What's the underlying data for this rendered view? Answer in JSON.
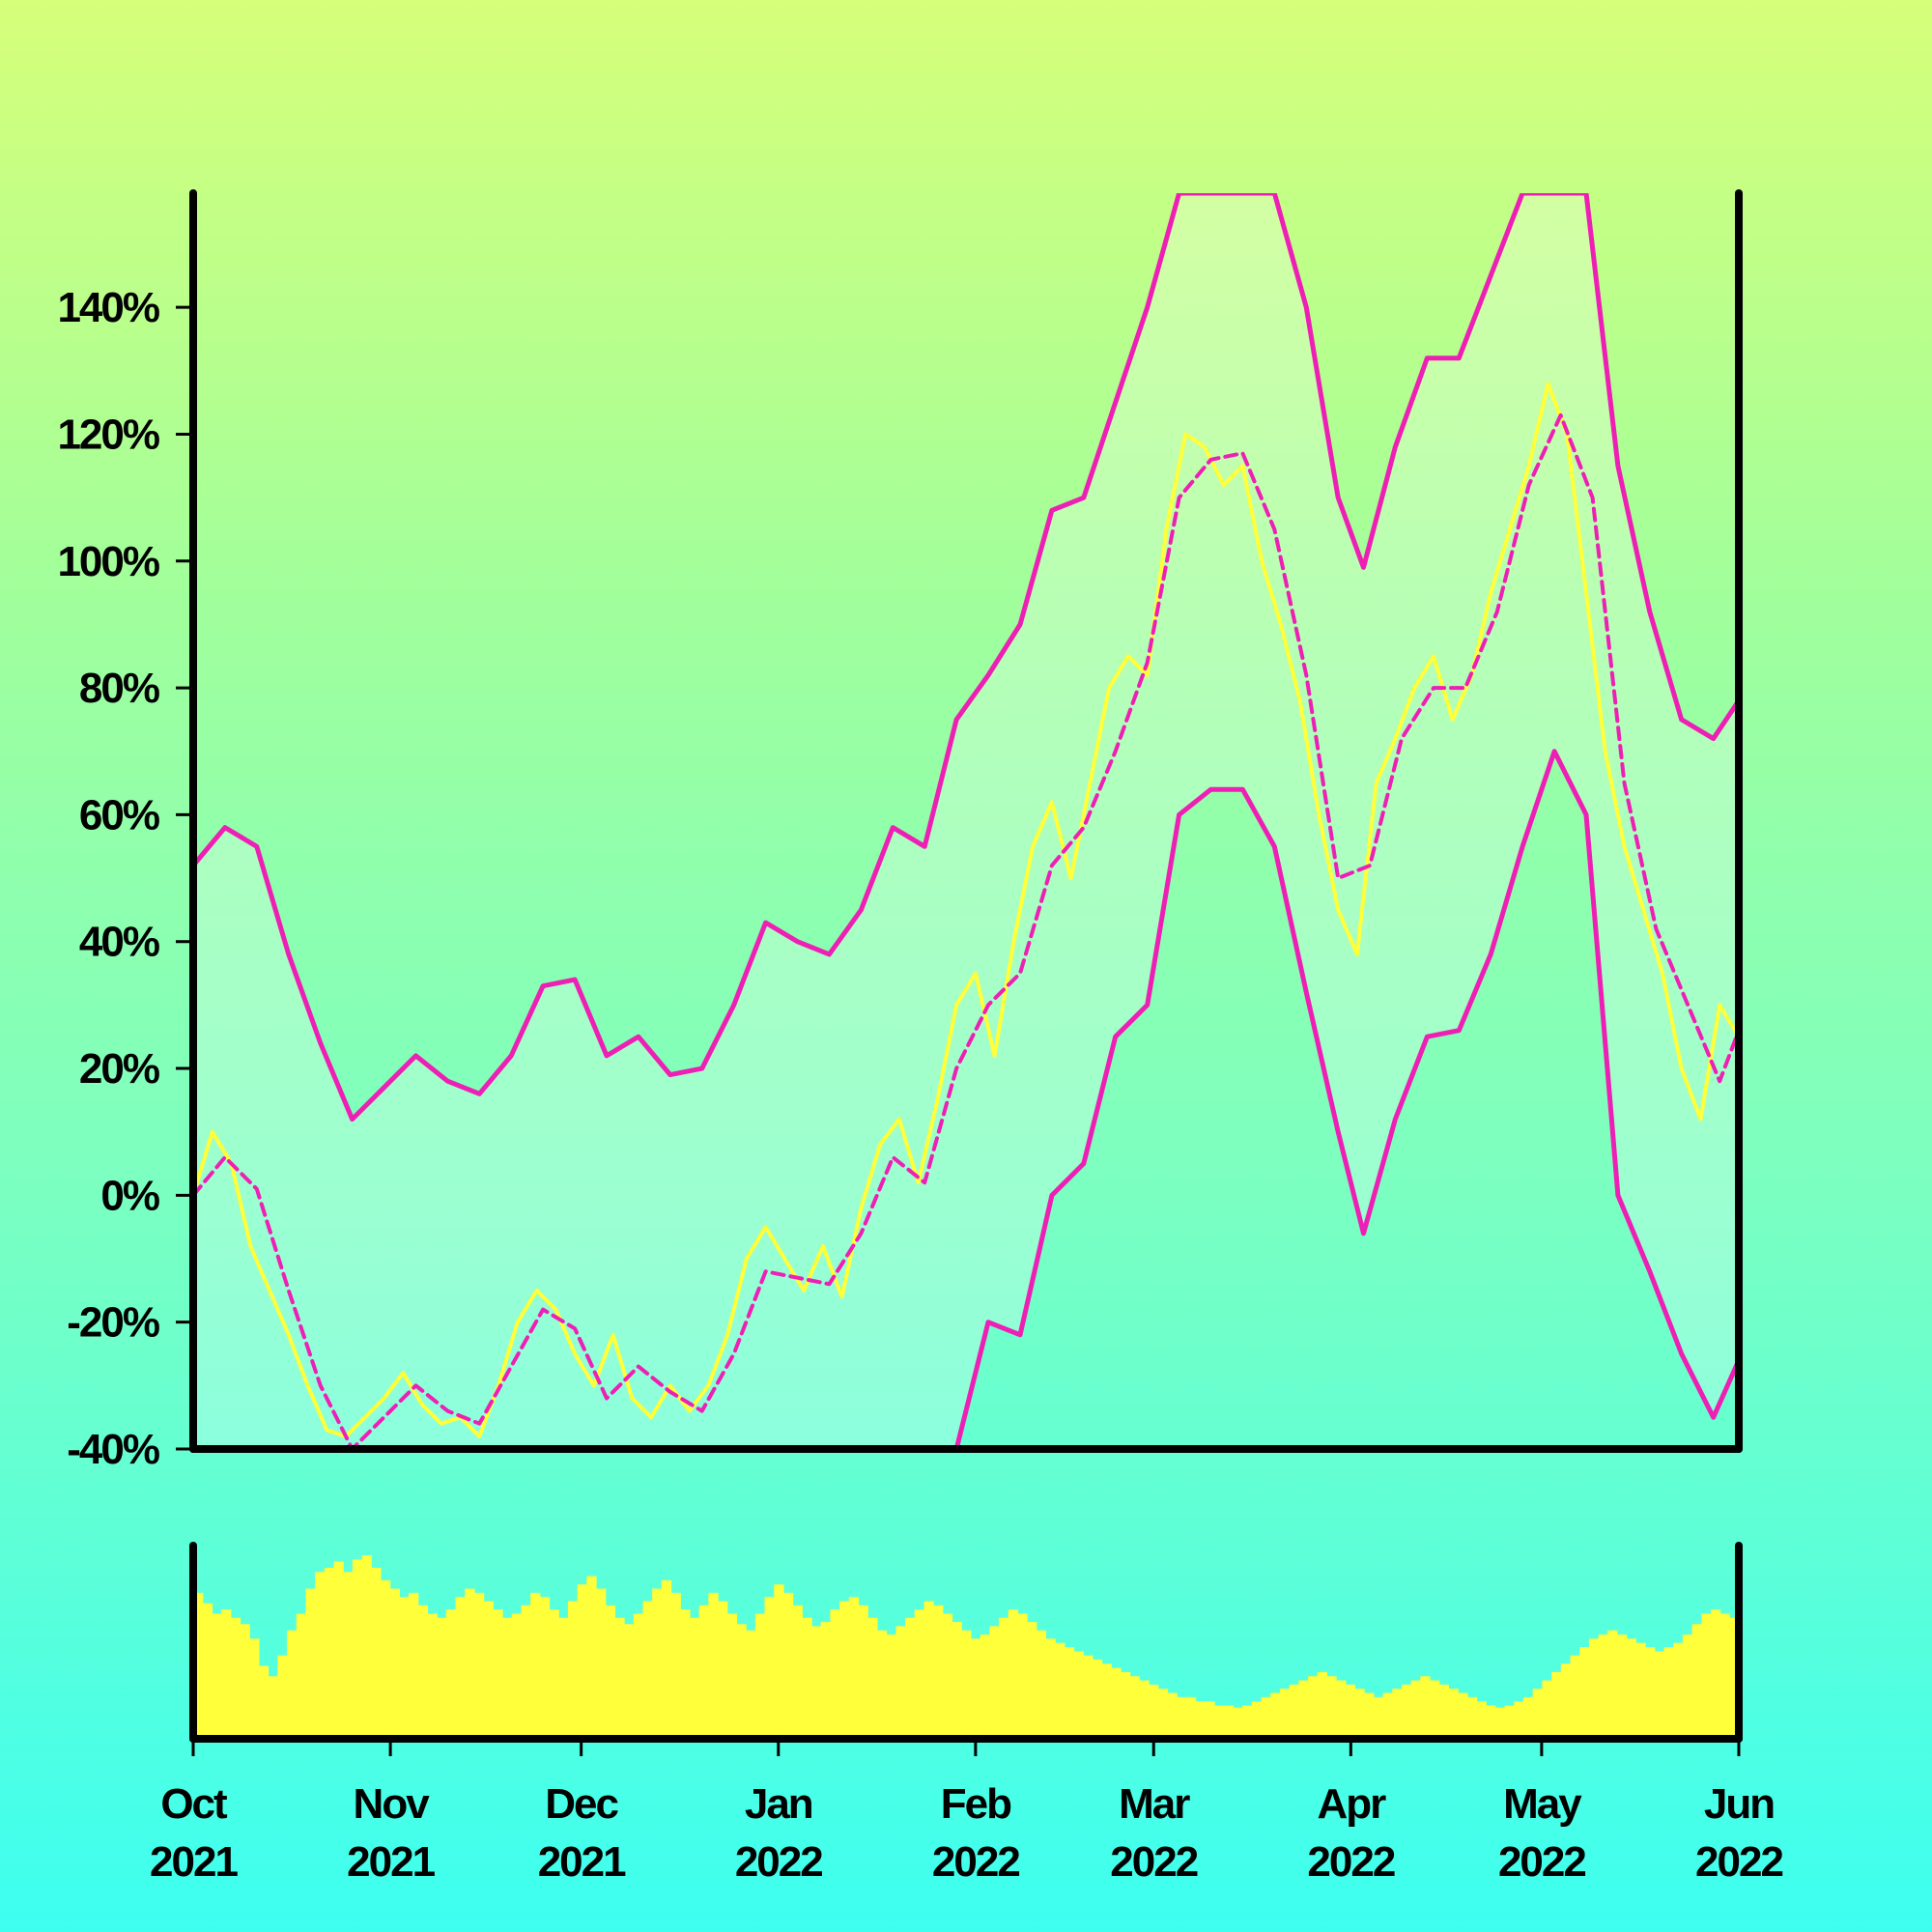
{
  "chart_data": {
    "type": "line",
    "x_domain": [
      "2021-10-01",
      "2022-06-01"
    ],
    "ylim": [
      -40,
      158
    ],
    "y_ticks": [
      {
        "value": -40,
        "label": "-40%"
      },
      {
        "value": -20,
        "label": "-20%"
      },
      {
        "value": 0,
        "label": "0%"
      },
      {
        "value": 20,
        "label": "20%"
      },
      {
        "value": 40,
        "label": "40%"
      },
      {
        "value": 60,
        "label": "60%"
      },
      {
        "value": 80,
        "label": "80%"
      },
      {
        "value": 100,
        "label": "100%"
      },
      {
        "value": 120,
        "label": "120%"
      },
      {
        "value": 140,
        "label": "140%"
      }
    ],
    "x_ticks": [
      {
        "date": "2021-10-01",
        "month": "Oct",
        "year": "2021"
      },
      {
        "date": "2021-11-01",
        "month": "Nov",
        "year": "2021"
      },
      {
        "date": "2021-12-01",
        "month": "Dec",
        "year": "2021"
      },
      {
        "date": "2022-01-01",
        "month": "Jan",
        "year": "2022"
      },
      {
        "date": "2022-02-01",
        "month": "Feb",
        "year": "2022"
      },
      {
        "date": "2022-03-01",
        "month": "Mar",
        "year": "2022"
      },
      {
        "date": "2022-04-01",
        "month": "Apr",
        "year": "2022"
      },
      {
        "date": "2022-05-01",
        "month": "May",
        "year": "2022"
      },
      {
        "date": "2022-06-01",
        "month": "Jun",
        "year": "2022"
      }
    ],
    "series": [
      {
        "role": "price",
        "points": [
          [
            "2021-10-01",
            0
          ],
          [
            "2021-10-04",
            10
          ],
          [
            "2021-10-07",
            5
          ],
          [
            "2021-10-10",
            -8
          ],
          [
            "2021-10-13",
            -15
          ],
          [
            "2021-10-16",
            -22
          ],
          [
            "2021-10-19",
            -30
          ],
          [
            "2021-10-22",
            -37
          ],
          [
            "2021-10-25",
            -38
          ],
          [
            "2021-10-28",
            -35
          ],
          [
            "2021-10-31",
            -32
          ],
          [
            "2021-11-03",
            -28
          ],
          [
            "2021-11-06",
            -33
          ],
          [
            "2021-11-09",
            -36
          ],
          [
            "2021-11-12",
            -35
          ],
          [
            "2021-11-15",
            -38
          ],
          [
            "2021-11-18",
            -30
          ],
          [
            "2021-11-21",
            -20
          ],
          [
            "2021-11-24",
            -15
          ],
          [
            "2021-11-27",
            -18
          ],
          [
            "2021-11-30",
            -25
          ],
          [
            "2021-12-03",
            -30
          ],
          [
            "2021-12-06",
            -22
          ],
          [
            "2021-12-09",
            -32
          ],
          [
            "2021-12-12",
            -35
          ],
          [
            "2021-12-15",
            -30
          ],
          [
            "2021-12-18",
            -34
          ],
          [
            "2021-12-21",
            -30
          ],
          [
            "2021-12-24",
            -22
          ],
          [
            "2021-12-27",
            -10
          ],
          [
            "2021-12-30",
            -5
          ],
          [
            "2022-01-02",
            -10
          ],
          [
            "2022-01-05",
            -15
          ],
          [
            "2022-01-08",
            -8
          ],
          [
            "2022-01-11",
            -16
          ],
          [
            "2022-01-14",
            -2
          ],
          [
            "2022-01-17",
            8
          ],
          [
            "2022-01-20",
            12
          ],
          [
            "2022-01-23",
            2
          ],
          [
            "2022-01-26",
            15
          ],
          [
            "2022-01-29",
            30
          ],
          [
            "2022-02-01",
            35
          ],
          [
            "2022-02-04",
            22
          ],
          [
            "2022-02-07",
            40
          ],
          [
            "2022-02-10",
            55
          ],
          [
            "2022-02-13",
            62
          ],
          [
            "2022-02-16",
            50
          ],
          [
            "2022-02-19",
            65
          ],
          [
            "2022-02-22",
            80
          ],
          [
            "2022-02-25",
            85
          ],
          [
            "2022-02-28",
            82
          ],
          [
            "2022-03-03",
            105
          ],
          [
            "2022-03-06",
            120
          ],
          [
            "2022-03-09",
            118
          ],
          [
            "2022-03-12",
            112
          ],
          [
            "2022-03-15",
            115
          ],
          [
            "2022-03-18",
            100
          ],
          [
            "2022-03-21",
            90
          ],
          [
            "2022-03-24",
            78
          ],
          [
            "2022-03-27",
            60
          ],
          [
            "2022-03-30",
            45
          ],
          [
            "2022-04-02",
            38
          ],
          [
            "2022-04-05",
            65
          ],
          [
            "2022-04-08",
            72
          ],
          [
            "2022-04-11",
            80
          ],
          [
            "2022-04-14",
            85
          ],
          [
            "2022-04-17",
            75
          ],
          [
            "2022-04-20",
            82
          ],
          [
            "2022-04-23",
            95
          ],
          [
            "2022-04-26",
            105
          ],
          [
            "2022-04-29",
            115
          ],
          [
            "2022-05-02",
            128
          ],
          [
            "2022-05-05",
            120
          ],
          [
            "2022-05-08",
            95
          ],
          [
            "2022-05-11",
            70
          ],
          [
            "2022-05-14",
            55
          ],
          [
            "2022-05-17",
            45
          ],
          [
            "2022-05-20",
            35
          ],
          [
            "2022-05-23",
            20
          ],
          [
            "2022-05-26",
            12
          ],
          [
            "2022-05-29",
            30
          ],
          [
            "2022-06-01",
            25
          ]
        ]
      },
      {
        "role": "moving-average",
        "points": [
          [
            "2021-10-01",
            0
          ],
          [
            "2021-10-06",
            6
          ],
          [
            "2021-10-11",
            1
          ],
          [
            "2021-10-16",
            -15
          ],
          [
            "2021-10-21",
            -30
          ],
          [
            "2021-10-26",
            -40
          ],
          [
            "2021-10-31",
            -35
          ],
          [
            "2021-11-05",
            -30
          ],
          [
            "2021-11-10",
            -34
          ],
          [
            "2021-11-15",
            -36
          ],
          [
            "2021-11-20",
            -27
          ],
          [
            "2021-11-25",
            -18
          ],
          [
            "2021-11-30",
            -21
          ],
          [
            "2021-12-05",
            -32
          ],
          [
            "2021-12-10",
            -27
          ],
          [
            "2021-12-15",
            -31
          ],
          [
            "2021-12-20",
            -34
          ],
          [
            "2021-12-25",
            -25
          ],
          [
            "2021-12-30",
            -12
          ],
          [
            "2022-01-04",
            -13
          ],
          [
            "2022-01-09",
            -14
          ],
          [
            "2022-01-14",
            -6
          ],
          [
            "2022-01-19",
            6
          ],
          [
            "2022-01-24",
            2
          ],
          [
            "2022-01-29",
            20
          ],
          [
            "2022-02-03",
            30
          ],
          [
            "2022-02-08",
            35
          ],
          [
            "2022-02-13",
            52
          ],
          [
            "2022-02-18",
            58
          ],
          [
            "2022-02-23",
            70
          ],
          [
            "2022-02-28",
            84
          ],
          [
            "2022-03-05",
            110
          ],
          [
            "2022-03-10",
            116
          ],
          [
            "2022-03-15",
            117
          ],
          [
            "2022-03-20",
            105
          ],
          [
            "2022-03-25",
            82
          ],
          [
            "2022-03-30",
            50
          ],
          [
            "2022-04-04",
            52
          ],
          [
            "2022-04-09",
            72
          ],
          [
            "2022-04-14",
            80
          ],
          [
            "2022-04-19",
            80
          ],
          [
            "2022-04-24",
            92
          ],
          [
            "2022-04-29",
            112
          ],
          [
            "2022-05-04",
            123
          ],
          [
            "2022-05-09",
            110
          ],
          [
            "2022-05-14",
            65
          ],
          [
            "2022-05-19",
            42
          ],
          [
            "2022-05-24",
            30
          ],
          [
            "2022-05-29",
            18
          ],
          [
            "2022-06-01",
            26
          ]
        ]
      },
      {
        "role": "upper-band",
        "points": [
          [
            "2021-10-01",
            52
          ],
          [
            "2021-10-06",
            58
          ],
          [
            "2021-10-11",
            55
          ],
          [
            "2021-10-16",
            38
          ],
          [
            "2021-10-21",
            24
          ],
          [
            "2021-10-26",
            12
          ],
          [
            "2021-10-31",
            17
          ],
          [
            "2021-11-05",
            22
          ],
          [
            "2021-11-10",
            18
          ],
          [
            "2021-11-15",
            16
          ],
          [
            "2021-11-20",
            22
          ],
          [
            "2021-11-25",
            33
          ],
          [
            "2021-11-30",
            34
          ],
          [
            "2021-12-05",
            22
          ],
          [
            "2021-12-10",
            25
          ],
          [
            "2021-12-15",
            19
          ],
          [
            "2021-12-20",
            20
          ],
          [
            "2021-12-25",
            30
          ],
          [
            "2021-12-30",
            43
          ],
          [
            "2022-01-04",
            40
          ],
          [
            "2022-01-09",
            38
          ],
          [
            "2022-01-14",
            45
          ],
          [
            "2022-01-19",
            58
          ],
          [
            "2022-01-24",
            55
          ],
          [
            "2022-01-29",
            75
          ],
          [
            "2022-02-03",
            82
          ],
          [
            "2022-02-08",
            90
          ],
          [
            "2022-02-13",
            108
          ],
          [
            "2022-02-18",
            110
          ],
          [
            "2022-02-23",
            125
          ],
          [
            "2022-02-28",
            140
          ],
          [
            "2022-03-05",
            158
          ],
          [
            "2022-03-20",
            158
          ],
          [
            "2022-03-25",
            140
          ],
          [
            "2022-03-30",
            110
          ],
          [
            "2022-04-03",
            99
          ],
          [
            "2022-04-08",
            118
          ],
          [
            "2022-04-13",
            132
          ],
          [
            "2022-04-18",
            132
          ],
          [
            "2022-04-23",
            145
          ],
          [
            "2022-04-28",
            158
          ],
          [
            "2022-05-08",
            158
          ],
          [
            "2022-05-13",
            115
          ],
          [
            "2022-05-18",
            92
          ],
          [
            "2022-05-23",
            75
          ],
          [
            "2022-05-28",
            72
          ],
          [
            "2022-06-01",
            78
          ]
        ]
      },
      {
        "role": "lower-band",
        "points": [
          [
            "2022-01-29",
            -40
          ],
          [
            "2022-02-03",
            -20
          ],
          [
            "2022-02-08",
            -22
          ],
          [
            "2022-02-13",
            0
          ],
          [
            "2022-02-18",
            5
          ],
          [
            "2022-02-23",
            25
          ],
          [
            "2022-02-28",
            30
          ],
          [
            "2022-03-05",
            60
          ],
          [
            "2022-03-10",
            64
          ],
          [
            "2022-03-15",
            64
          ],
          [
            "2022-03-20",
            55
          ],
          [
            "2022-03-25",
            32
          ],
          [
            "2022-03-30",
            10
          ],
          [
            "2022-04-03",
            -6
          ],
          [
            "2022-04-08",
            12
          ],
          [
            "2022-04-13",
            25
          ],
          [
            "2022-04-18",
            26
          ],
          [
            "2022-04-23",
            38
          ],
          [
            "2022-04-28",
            55
          ],
          [
            "2022-05-03",
            70
          ],
          [
            "2022-05-08",
            60
          ],
          [
            "2022-05-13",
            0
          ],
          [
            "2022-05-18",
            -12
          ],
          [
            "2022-05-23",
            -25
          ],
          [
            "2022-05-28",
            -35
          ],
          [
            "2022-06-01",
            -26
          ]
        ]
      }
    ],
    "volume": {
      "type": "bar",
      "values": [
        70,
        65,
        60,
        62,
        58,
        55,
        48,
        35,
        30,
        40,
        52,
        60,
        72,
        80,
        82,
        85,
        80,
        86,
        88,
        82,
        76,
        72,
        68,
        70,
        64,
        60,
        58,
        62,
        68,
        72,
        70,
        66,
        62,
        58,
        60,
        64,
        70,
        68,
        62,
        58,
        66,
        74,
        78,
        72,
        64,
        58,
        55,
        60,
        66,
        72,
        76,
        70,
        62,
        58,
        64,
        70,
        66,
        60,
        55,
        52,
        60,
        68,
        74,
        70,
        64,
        58,
        54,
        56,
        62,
        66,
        68,
        64,
        58,
        52,
        50,
        54,
        58,
        62,
        66,
        64,
        60,
        56,
        52,
        48,
        50,
        54,
        58,
        62,
        60,
        56,
        52,
        48,
        46,
        44,
        42,
        40,
        38,
        36,
        34,
        32,
        30,
        28,
        26,
        24,
        22,
        20,
        20,
        18,
        18,
        16,
        16,
        15,
        16,
        18,
        20,
        22,
        24,
        26,
        28,
        30,
        32,
        30,
        28,
        26,
        24,
        22,
        20,
        22,
        24,
        26,
        28,
        30,
        28,
        26,
        24,
        22,
        20,
        18,
        16,
        15,
        16,
        18,
        20,
        24,
        28,
        32,
        36,
        40,
        44,
        48,
        50,
        52,
        50,
        48,
        46,
        44,
        42,
        44,
        46,
        50,
        55,
        60,
        62,
        60,
        58
      ]
    }
  }
}
